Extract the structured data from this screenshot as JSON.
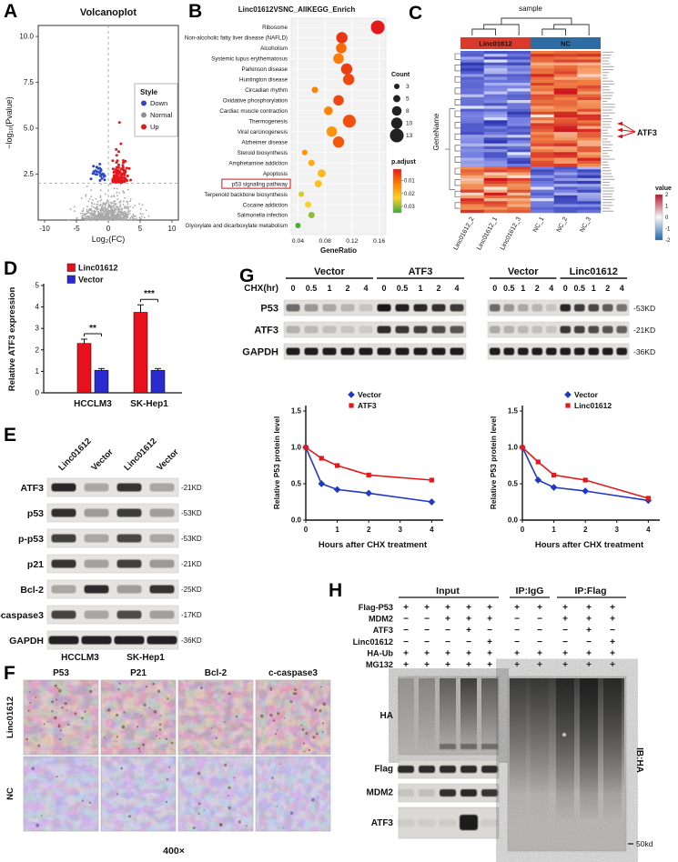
{
  "labels": {
    "A": "A",
    "B": "B",
    "C": "C",
    "D": "D",
    "E": "E",
    "F": "F",
    "G": "G",
    "H": "H"
  },
  "panelA": {
    "title": "Volcanoplot",
    "xlabel": "Log₂(FC)",
    "ylabel": "−log₁₀(Pvalue)",
    "x_ticks": [
      "-10",
      "-5",
      "0",
      "5",
      "10"
    ],
    "y_ticks": [
      "2.5",
      "5.0",
      "7.5",
      "10.0"
    ],
    "threshold": 2,
    "legend": {
      "title": "Style",
      "items": [
        {
          "label": "Down",
          "color": "#3049c9"
        },
        {
          "label": "Normal",
          "color": "#8f8f8f"
        },
        {
          "label": "Up",
          "color": "#e3191c"
        }
      ]
    },
    "counts": {
      "normal": 680,
      "up": 120,
      "down": 30
    },
    "seed": 11
  },
  "panelB": {
    "title": "Linc01612VSNC_AllKEGG_Enrich",
    "xlabel": "GeneRatio",
    "x_ticks": [
      "0.04",
      "0.08",
      "0.12",
      "0.16"
    ],
    "xlim": [
      0.03,
      0.17
    ],
    "highlight": "p53 signaling pathway",
    "count_legend": {
      "title": "Count",
      "values": [
        3,
        5,
        8,
        10,
        13
      ]
    },
    "padjust_legend": {
      "title": "p.adjust",
      "ticks": [
        "0.01",
        "0.02",
        "0.03"
      ]
    },
    "items": [
      {
        "label": "Ribosome",
        "ratio": 0.158,
        "count": 13,
        "padj": 0.001
      },
      {
        "label": "Non-alcoholic fatty liver disease (NAFLD)",
        "ratio": 0.105,
        "count": 10,
        "padj": 0.004
      },
      {
        "label": "Alcoholism",
        "ratio": 0.104,
        "count": 9,
        "padj": 0.01
      },
      {
        "label": "Systemic lupus erythematosus",
        "ratio": 0.1,
        "count": 9,
        "padj": 0.012
      },
      {
        "label": "Parkinson disease",
        "ratio": 0.112,
        "count": 10,
        "padj": 0.005
      },
      {
        "label": "Huntington disease",
        "ratio": 0.115,
        "count": 10,
        "padj": 0.006
      },
      {
        "label": "Circadian rhythm",
        "ratio": 0.065,
        "count": 4,
        "padj": 0.013
      },
      {
        "label": "Oxidative phosphorylation",
        "ratio": 0.1,
        "count": 9,
        "padj": 0.006
      },
      {
        "label": "Cardiac muscle contraction",
        "ratio": 0.085,
        "count": 7,
        "padj": 0.013
      },
      {
        "label": "Thermogenesis",
        "ratio": 0.116,
        "count": 12,
        "padj": 0.007
      },
      {
        "label": "Viral carcinogenesis",
        "ratio": 0.09,
        "count": 9,
        "padj": 0.015
      },
      {
        "label": "Alzheimer disease",
        "ratio": 0.1,
        "count": 10,
        "padj": 0.008
      },
      {
        "label": "Steroid biosynthesis",
        "ratio": 0.05,
        "count": 3,
        "padj": 0.015
      },
      {
        "label": "Amphetamine addiction",
        "ratio": 0.06,
        "count": 4,
        "padj": 0.018
      },
      {
        "label": "Apoptosis",
        "ratio": 0.075,
        "count": 6,
        "padj": 0.02
      },
      {
        "label": "p53 signaling pathway",
        "ratio": 0.07,
        "count": 5,
        "padj": 0.021
      },
      {
        "label": "Terpenoid backbone biosynthesis",
        "ratio": 0.045,
        "count": 3,
        "padj": 0.026
      },
      {
        "label": "Cocaine addiction",
        "ratio": 0.055,
        "count": 4,
        "padj": 0.024
      },
      {
        "label": "Salmonella infection",
        "ratio": 0.06,
        "count": 4,
        "padj": 0.03
      },
      {
        "label": "Glyoxylate and dicarboxylate metabolism",
        "ratio": 0.04,
        "count": 3,
        "padj": 0.034
      }
    ]
  },
  "panelC": {
    "top_label": "sample",
    "groups": [
      {
        "label": "Linc01612",
        "color": "#d93a2b"
      },
      {
        "label": "NC",
        "color": "#2e6da4"
      }
    ],
    "row_axis_label": "GeneName",
    "col_labels": [
      "Linc01612_2",
      "Linc01612_1",
      "Linc01612_3",
      "NC_1",
      "NC_2",
      "NC_3"
    ],
    "gene_callout": "ATF3",
    "value_legend": {
      "title": "value",
      "ticks": [
        "2",
        "1",
        "0",
        "-1",
        "-2"
      ]
    },
    "grid": {
      "rows": 56,
      "cols": 6,
      "split": 40,
      "seed": 5
    }
  },
  "panelD": {
    "ylabel": "Relative ATF3 expression",
    "y_ticks": [
      "0",
      "1",
      "2",
      "3",
      "4",
      "5"
    ],
    "categories": [
      "HCCLM3",
      "SK-Hep1"
    ],
    "series": [
      {
        "name": "Linc01612",
        "color": "#e8101c",
        "values": [
          2.3,
          3.75
        ],
        "errors": [
          0.2,
          0.35
        ]
      },
      {
        "name": "Vector",
        "color": "#2a2ad0",
        "values": [
          1.05,
          1.05
        ],
        "errors": [
          0.08,
          0.08
        ]
      }
    ],
    "significance": [
      "**",
      "***"
    ]
  },
  "panelE": {
    "lanes": [
      "Linc01612",
      "Vector",
      "Linc01612",
      "Vector"
    ],
    "rows": [
      {
        "label": "ATF3",
        "marker": "-21KD",
        "bands": [
          0.92,
          0.28,
          0.85,
          0.3
        ]
      },
      {
        "label": "p53",
        "marker": "-53KD",
        "bands": [
          0.88,
          0.35,
          0.82,
          0.34
        ]
      },
      {
        "label": "p-p53",
        "marker": "-53KD",
        "bands": [
          0.8,
          0.3,
          0.76,
          0.3
        ]
      },
      {
        "label": "p21",
        "marker": "-21KD",
        "bands": [
          0.85,
          0.32,
          0.8,
          0.36
        ]
      },
      {
        "label": "Bcl-2",
        "marker": "-25KD",
        "bands": [
          0.3,
          0.9,
          0.34,
          0.86
        ]
      },
      {
        "label": "c-caspase3",
        "marker": "-17KD",
        "bands": [
          0.78,
          0.3,
          0.74,
          0.33
        ]
      },
      {
        "label": "GAPDH",
        "marker": "-36KD",
        "bands": [
          0.95,
          0.95,
          0.95,
          0.95
        ]
      }
    ],
    "cell_lines": [
      "HCCLM3",
      "SK-Hep1"
    ]
  },
  "panelF": {
    "col_labels": [
      "P53",
      "P21",
      "Bcl-2",
      "c-caspase3"
    ],
    "row_labels": [
      "Linc01612",
      "NC"
    ],
    "magnification": "400×"
  },
  "panelG": {
    "chx_label": "CHX(hr)",
    "timepoints": [
      "0",
      "0.5",
      "1",
      "2",
      "4"
    ],
    "blocks": [
      {
        "left": "Vector",
        "right": "ATF3"
      },
      {
        "left": "Vector",
        "right": "Linc01612"
      }
    ],
    "rows": [
      {
        "label": "P53",
        "marker": "-53KD",
        "block1": [
          0.55,
          0.34,
          0.26,
          0.2,
          0.12,
          0.95,
          0.9,
          0.87,
          0.83,
          0.78
        ],
        "block2": [
          0.55,
          0.34,
          0.26,
          0.2,
          0.12,
          0.88,
          0.78,
          0.72,
          0.62,
          0.5
        ]
      },
      {
        "label": "ATF3",
        "marker": "-21KD",
        "block1": [
          0.22,
          0.18,
          0.15,
          0.12,
          0.1,
          0.85,
          0.8,
          0.76,
          0.7,
          0.65
        ],
        "block2": [
          0.25,
          0.22,
          0.18,
          0.15,
          0.12,
          0.8,
          0.75,
          0.7,
          0.66,
          0.6
        ]
      },
      {
        "label": "GAPDH",
        "marker": "-36KD",
        "block1": [
          0.92,
          0.92,
          0.92,
          0.92,
          0.92,
          0.92,
          0.92,
          0.92,
          0.92,
          0.92
        ],
        "block2": [
          0.92,
          0.92,
          0.92,
          0.92,
          0.92,
          0.92,
          0.92,
          0.92,
          0.92,
          0.92
        ]
      }
    ],
    "charts": [
      {
        "ylabel": "Relative P53 protein level",
        "xlabel": "Hours after CHX treatment",
        "y_ticks": [
          "0.0",
          "0.5",
          "1.0",
          "1.5"
        ],
        "x_ticks": [
          "0",
          "1",
          "2",
          "3",
          "4"
        ],
        "x": [
          0,
          0.5,
          1,
          2,
          4
        ],
        "series": [
          {
            "name": "Vector",
            "color": "#2038c8",
            "marker": "diamond",
            "values": [
              1.0,
              0.5,
              0.42,
              0.37,
              0.25
            ]
          },
          {
            "name": "ATF3",
            "color": "#e3191c",
            "marker": "square",
            "values": [
              1.0,
              0.85,
              0.75,
              0.62,
              0.55
            ]
          }
        ]
      },
      {
        "ylabel": "Relative P53 protein level",
        "xlabel": "Hours after CHX treatment",
        "y_ticks": [
          "0.0",
          "0.5",
          "1.0",
          "1.5"
        ],
        "x_ticks": [
          "0",
          "1",
          "2",
          "3",
          "4"
        ],
        "x": [
          0,
          0.5,
          1,
          2,
          4
        ],
        "series": [
          {
            "name": "Vector",
            "color": "#2038c8",
            "marker": "diamond",
            "values": [
              1.0,
              0.55,
              0.45,
              0.4,
              0.27
            ]
          },
          {
            "name": "Linc01612",
            "color": "#e3191c",
            "marker": "square",
            "values": [
              1.0,
              0.8,
              0.62,
              0.55,
              0.3
            ]
          }
        ]
      }
    ]
  },
  "panelH": {
    "group_headers": [
      "Input",
      "IP:IgG",
      "IP:Flag"
    ],
    "rows": [
      {
        "label": "Flag-P53",
        "input": [
          "+",
          "+",
          "+",
          "+",
          "+"
        ],
        "ip": [
          "+",
          "+",
          "+",
          "+",
          "+"
        ]
      },
      {
        "label": "MDM2",
        "input": [
          "−",
          "−",
          "+",
          "+",
          "+"
        ],
        "ip": [
          "−",
          "−",
          "+",
          "+",
          "+"
        ]
      },
      {
        "label": "ATF3",
        "input": [
          "−",
          "−",
          "−",
          "+",
          "−"
        ],
        "ip": [
          "−",
          "−",
          "−",
          "+",
          "−"
        ]
      },
      {
        "label": "Linc01612",
        "input": [
          "−",
          "−",
          "−",
          "−",
          "+"
        ],
        "ip": [
          "−",
          "−",
          "−",
          "−",
          "+"
        ]
      },
      {
        "label": "HA-Ub",
        "input": [
          "+",
          "+",
          "+",
          "+",
          "+"
        ],
        "ip": [
          "+",
          "+",
          "+",
          "+",
          "+"
        ]
      },
      {
        "label": "MG132",
        "input": [
          "+",
          "+",
          "+",
          "+",
          "+"
        ],
        "ip": [
          "+",
          "+",
          "+",
          "+",
          "+"
        ]
      }
    ],
    "blot_labels": [
      "HA",
      "Flag",
      "MDM2",
      "ATF3"
    ],
    "right_blot_label": "IB:HA",
    "marker": "50kd"
  }
}
